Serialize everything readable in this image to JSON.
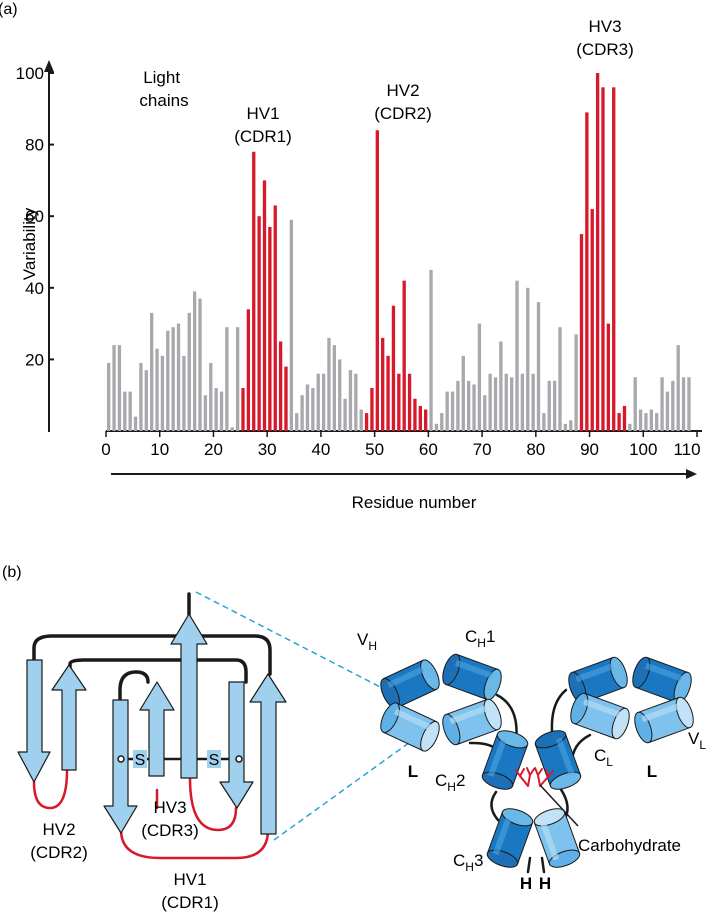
{
  "panel_a": {
    "label": "(a)",
    "legend": [
      "Light",
      "chains"
    ],
    "regions": [
      {
        "name": "HV1",
        "cdr": "(CDR1)"
      },
      {
        "name": "HV2",
        "cdr": "(CDR2)"
      },
      {
        "name": "HV3",
        "cdr": "(CDR3)"
      }
    ]
  },
  "panel_b": {
    "label": "(b)",
    "sulfur": "S",
    "loops": [
      {
        "name": "HV2",
        "cdr": "(CDR2)"
      },
      {
        "name": "HV3",
        "cdr": "(CDR3)"
      },
      {
        "name": "HV1",
        "cdr": "(CDR1)"
      }
    ],
    "domains": {
      "vh": {
        "main": "V",
        "sub": "H"
      },
      "ch1": {
        "main": "C",
        "sub": "H",
        "suffix": "1"
      },
      "vl": {
        "main": "V",
        "sub": "L"
      },
      "cl": {
        "main": "C",
        "sub": "L"
      },
      "ch2": {
        "main": "C",
        "sub": "H",
        "suffix": "2"
      },
      "ch3": {
        "main": "C",
        "sub": "H",
        "suffix": "3"
      }
    },
    "chain_light": "L",
    "chain_heavy": "H",
    "carbohydrate": "Carbohydrate"
  },
  "colors": {
    "hv": "#d7192b",
    "normal": "#a7a9ac",
    "axis": "#1a1a1a",
    "strand": "#9fd0ee",
    "cylinder": "#1a78c2"
  },
  "chart_data": {
    "type": "bar",
    "title": "",
    "legend": "Light chains",
    "xlabel": "Residue number",
    "ylabel": "Variability",
    "xlim": [
      0,
      110
    ],
    "ylim": [
      0,
      100
    ],
    "xticks": [
      0,
      10,
      20,
      30,
      40,
      50,
      60,
      70,
      80,
      90,
      100,
      110
    ],
    "yticks": [
      20,
      40,
      60,
      80,
      100
    ],
    "hypervariable_ranges": [
      [
        26,
        34
      ],
      [
        49,
        60
      ],
      [
        89,
        97
      ]
    ],
    "residues": [
      1,
      2,
      3,
      4,
      5,
      6,
      7,
      8,
      9,
      10,
      11,
      12,
      13,
      14,
      15,
      16,
      17,
      18,
      19,
      20,
      21,
      22,
      23,
      24,
      25,
      26,
      27,
      28,
      29,
      30,
      31,
      32,
      33,
      34,
      35,
      36,
      37,
      38,
      39,
      40,
      41,
      42,
      43,
      44,
      45,
      46,
      47,
      48,
      49,
      50,
      51,
      52,
      53,
      54,
      55,
      56,
      57,
      58,
      59,
      60,
      61,
      62,
      63,
      64,
      65,
      66,
      67,
      68,
      69,
      70,
      71,
      72,
      73,
      74,
      75,
      76,
      77,
      78,
      79,
      80,
      81,
      82,
      83,
      84,
      85,
      86,
      87,
      88,
      89,
      90,
      91,
      92,
      93,
      94,
      95,
      96,
      97,
      98,
      99,
      100,
      101,
      102,
      103,
      104,
      105,
      106,
      107,
      108,
      109
    ],
    "values": [
      19,
      24,
      24,
      11,
      11,
      4,
      19,
      17,
      33,
      23,
      21,
      28,
      29,
      30,
      21,
      33,
      39,
      37,
      10,
      19,
      12,
      11,
      29,
      1,
      29,
      12,
      34,
      78,
      60,
      70,
      57,
      63,
      25,
      18,
      59,
      5,
      10,
      13,
      12,
      16,
      16,
      26,
      24,
      20,
      9,
      17,
      16,
      6,
      5,
      12,
      84,
      26,
      21,
      35,
      16,
      42,
      16,
      9,
      7,
      6,
      45,
      2,
      5,
      11,
      11,
      14,
      21,
      14,
      13,
      30,
      10,
      16,
      15,
      25,
      16,
      15,
      42,
      16,
      40,
      16,
      36,
      5,
      14,
      14,
      29,
      2,
      3,
      27,
      55,
      89,
      62,
      100,
      96,
      30,
      96,
      5,
      7,
      2,
      15,
      6,
      5,
      6,
      5,
      15,
      11,
      14,
      24,
      15,
      15
    ]
  }
}
